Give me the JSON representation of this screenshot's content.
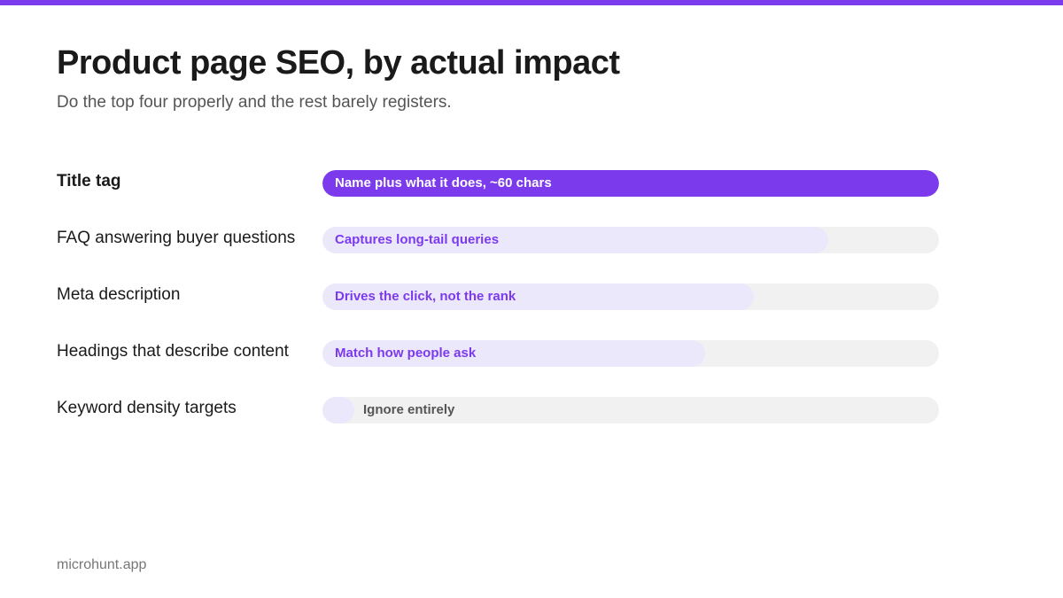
{
  "page": {
    "title": "Product page SEO, by actual impact",
    "subtitle": "Do the top four properly and the rest barely registers.",
    "footer": "microhunt.app"
  },
  "colors": {
    "accent": "#7c3aed",
    "bar_light": "#ece8fc",
    "track": "#f1f1f1"
  },
  "chart_data": {
    "type": "bar",
    "orientation": "horizontal",
    "grid": false,
    "value_scale": "relative impact, 0 to 1 (no printed axis)",
    "xlim": [
      0,
      1
    ],
    "categories": [
      "Title tag",
      "FAQ answering buyer questions",
      "Meta description",
      "Headings that describe content",
      "Keyword density targets"
    ],
    "values": [
      1.0,
      0.82,
      0.7,
      0.62,
      0.05
    ],
    "annotations": [
      "Name plus what it does, ~60 chars",
      "Captures long-tail queries",
      "Drives the click, not the rank",
      "Match how people ask",
      "Ignore entirely"
    ],
    "highlighted": [
      true,
      false,
      false,
      false,
      false
    ]
  }
}
